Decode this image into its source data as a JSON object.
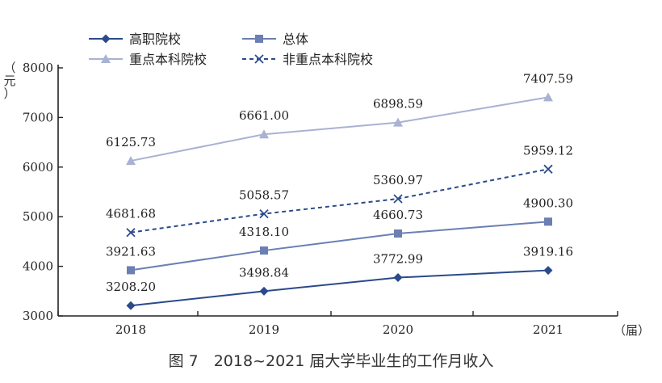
{
  "figure_caption": "图 7　2018~2021 届大学毕业生的工作月收入",
  "chart_data": {
    "type": "line",
    "title": "",
    "ylabel_parts": [
      "（",
      "元",
      "）"
    ],
    "xlabel": "（届）",
    "categories": [
      "2018",
      "2019",
      "2020",
      "2021"
    ],
    "ylim": [
      3000,
      8000
    ],
    "yticks": [
      3000,
      4000,
      5000,
      6000,
      7000,
      8000
    ],
    "grid": false,
    "legend_position": "top-left",
    "series": [
      {
        "name": "高职院校",
        "values": [
          3208.2,
          3498.84,
          3772.99,
          3919.16
        ],
        "labels": [
          "3208.20",
          "3498.84",
          "3772.99",
          "3919.16"
        ],
        "color": "#2b4a8b",
        "marker": "diamond",
        "dashed": false
      },
      {
        "name": "总体",
        "values": [
          3921.63,
          4318.1,
          4660.73,
          4900.3
        ],
        "labels": [
          "3921.63",
          "4318.10",
          "4660.73",
          "4900.30"
        ],
        "color": "#6b7fb3",
        "marker": "square",
        "dashed": false
      },
      {
        "name": "重点本科院校",
        "values": [
          6125.73,
          6661.0,
          6898.59,
          7407.59
        ],
        "labels": [
          "6125.73",
          "6661.00",
          "6898.59",
          "7407.59"
        ],
        "color": "#a9b2d3",
        "marker": "triangle",
        "dashed": false
      },
      {
        "name": "非重点本科院校",
        "values": [
          4681.68,
          5058.57,
          5360.97,
          5959.12
        ],
        "labels": [
          "4681.68",
          "5058.57",
          "5360.97",
          "5959.12"
        ],
        "color": "#2b4a8b",
        "marker": "x",
        "dashed": true
      }
    ]
  }
}
